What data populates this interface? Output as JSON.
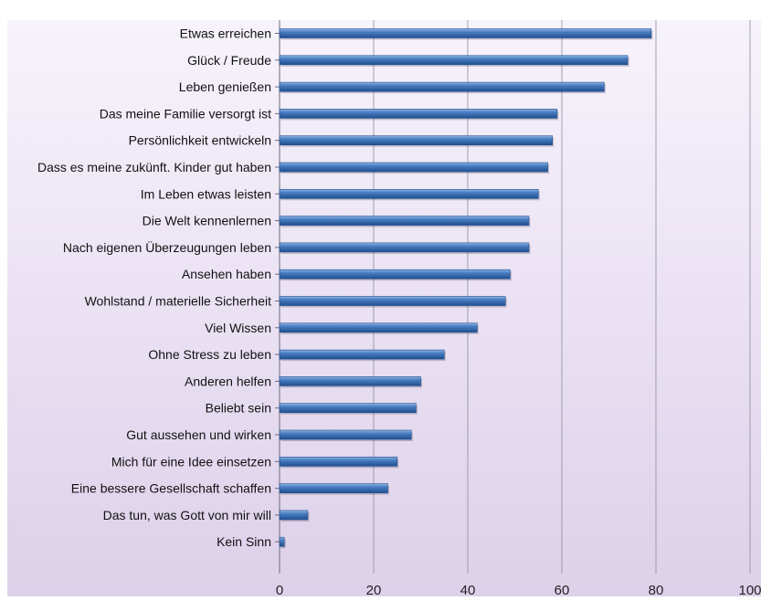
{
  "chart_data": {
    "type": "bar",
    "orientation": "horizontal",
    "categories": [
      "Etwas erreichen",
      "Glück / Freude",
      "Leben genießen",
      "Das meine Familie versorgt ist",
      "Persönlichkeit entwickeln",
      "Dass es meine zukünft. Kinder gut haben",
      "Im Leben etwas leisten",
      "Die Welt kennenlernen",
      "Nach eigenen Überzeugungen leben",
      "Ansehen haben",
      "Wohlstand / materielle Sicherheit",
      "Viel Wissen",
      "Ohne Stress zu leben",
      "Anderen helfen",
      "Beliebt sein",
      "Gut aussehen und wirken",
      "Mich für eine Idee einsetzen",
      "Eine bessere Gesellschaft schaffen",
      "Das tun, was Gott von mir will",
      "Kein Sinn"
    ],
    "values": [
      79,
      74,
      69,
      59,
      58,
      57,
      55,
      53,
      53,
      49,
      48,
      42,
      35,
      30,
      29,
      28,
      25,
      23,
      6,
      1
    ],
    "xlim": [
      0,
      100
    ],
    "x_ticks": [
      "0",
      "20",
      "40",
      "60",
      "80",
      "100"
    ],
    "grid": true,
    "colors": {
      "bar": "#4a7ec2",
      "bar_light": "#8fb4e3",
      "bar_dark": "#1f4f8f",
      "background_top": "#f7f3fb",
      "background_bottom": "#ddd0ea",
      "gridline": "#8c8c9c"
    }
  }
}
